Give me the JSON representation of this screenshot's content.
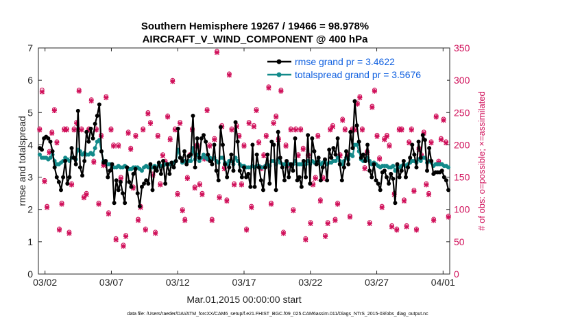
{
  "chart_data": {
    "type": "line",
    "title_line1": "Southern Hemisphere 19267 / 19466 = 98.978%",
    "title_line2": "AIRCRAFT_V_WIND_COMPONENT @ 400 hPa",
    "ylabel": "rmse and totalspread",
    "ylabel_right": "# of obs: o=possible; ×=assimilated",
    "xlabel": "Mar.01,2015 00:00:00 start",
    "footnote": "data file: /Users/raeder/DAI/ATM_forcXX/CAM6_setup/f.e21.FHIST_BGC.f09_025.CAM6assim.011/Diags_NTrS_2015-03/obs_diag_output.nc",
    "x_range_days": [
      0.5,
      31.5
    ],
    "ylim": [
      0,
      7
    ],
    "ylim_right": [
      0,
      350
    ],
    "xticks": [
      {
        "label": "03/02",
        "day": 1
      },
      {
        "label": "03/07",
        "day": 6
      },
      {
        "label": "03/12",
        "day": 11
      },
      {
        "label": "03/17",
        "day": 16
      },
      {
        "label": "03/22",
        "day": 21
      },
      {
        "label": "03/27",
        "day": 26
      },
      {
        "label": "04/01",
        "day": 31
      }
    ],
    "yticks": [
      "0",
      "1",
      "2",
      "3",
      "4",
      "5",
      "6",
      "7"
    ],
    "yticks_right": [
      "0",
      "50",
      "100",
      "150",
      "200",
      "250",
      "300",
      "350"
    ],
    "colors": {
      "rmse": "#000000",
      "spread": "#128a8a",
      "obs": "#d0105a",
      "legend_text": "#1060e0"
    },
    "legend": [
      {
        "name": "rmse grand pr = 3.4622",
        "series": "rmse"
      },
      {
        "name": "totalspread grand pr = 3.5676",
        "series": "spread"
      }
    ],
    "series": [
      {
        "name": "rmse",
        "values": [
          3.9,
          3.85,
          4.2,
          4.25,
          4.2,
          4.1,
          3.8,
          3.3,
          3.0,
          2.85,
          2.6,
          3.0,
          3.5,
          2.8,
          3.0,
          3.9,
          3.6,
          3.4,
          5.05,
          3.3,
          3.05,
          3.5,
          4.4,
          4.1,
          4.5,
          4.2,
          4.65,
          4.9,
          5.25,
          3.8,
          3.45,
          3.5,
          3.0,
          3.2,
          3.4,
          2.2,
          2.9,
          2.6,
          2.85,
          2.5,
          2.2,
          3.3,
          2.85,
          2.7,
          3.1,
          3.25,
          2.5,
          2.1,
          2.7,
          2.8,
          2.9,
          2.8,
          3.4,
          2.6,
          3.3,
          3.2,
          3.45,
          3.1,
          3.5,
          2.8,
          3.4,
          3.1,
          3.45,
          3.3,
          3.5,
          4.5,
          3.6,
          3.5,
          3.8,
          3.4,
          3.65,
          3.7,
          4.9,
          3.3,
          4.2,
          3.6,
          4.2,
          4.3,
          4.1,
          3.7,
          3.5,
          3.4,
          4.0,
          3.2,
          2.9,
          4.55,
          4.0,
          3.4,
          3.0,
          3.3,
          3.7,
          3.2,
          4.7,
          4.1,
          3.2,
          3.0,
          3.3,
          3.0,
          3.1,
          2.7,
          4.0,
          2.7,
          3.7,
          3.3,
          2.9,
          2.6,
          3.3,
          3.7,
          2.8,
          4.1,
          4.0,
          2.6,
          4.4,
          3.6,
          3.3,
          2.9,
          3.5,
          3.0,
          3.4,
          3.2,
          4.2,
          2.9,
          3.0,
          2.7,
          3.5,
          3.0,
          4.3,
          2.8,
          4.2,
          3.8,
          3.4,
          3.6,
          2.9,
          3.3,
          3.55,
          2.9,
          3.85,
          3.6,
          3.9,
          3.7,
          4.2,
          3.4,
          2.9,
          3.3,
          3.8,
          3.4,
          4.4,
          3.9,
          5.35,
          4.6,
          4.1,
          3.6,
          3.7,
          3.5,
          4.0,
          3.2,
          3.0,
          3.4,
          2.9,
          2.8,
          2.6,
          3.15,
          3.2,
          3.0,
          2.8,
          3.1,
          2.95,
          2.2,
          3.4,
          3.0,
          3.2,
          3.5,
          3.0,
          3.3,
          3.6,
          4.0,
          3.7,
          3.3,
          4.1,
          3.6,
          4.3,
          4.15,
          3.2,
          3.9,
          3.5,
          3.1,
          3.15,
          3.15,
          3.15,
          3.2,
          3.0,
          2.9,
          2.6
        ]
      },
      {
        "name": "totalspread",
        "values": [
          3.7,
          3.6,
          3.6,
          3.6,
          3.55,
          3.6,
          3.7,
          3.5,
          3.4,
          3.4,
          3.45,
          3.5,
          3.6,
          3.55,
          3.5,
          3.6,
          3.6,
          3.55,
          3.85,
          3.8,
          3.7,
          3.75,
          3.7,
          3.7,
          3.75,
          3.7,
          3.9,
          4.1,
          4.15,
          3.8,
          3.5,
          3.45,
          3.4,
          3.4,
          3.3,
          3.3,
          3.3,
          3.35,
          3.3,
          3.3,
          3.35,
          3.3,
          3.25,
          3.25,
          3.3,
          3.3,
          3.3,
          3.25,
          3.2,
          3.3,
          3.35,
          3.3,
          3.35,
          3.3,
          3.35,
          3.3,
          3.4,
          3.35,
          3.35,
          3.4,
          3.4,
          3.4,
          3.4,
          3.45,
          3.5,
          3.85,
          3.6,
          3.45,
          3.5,
          3.45,
          3.5,
          3.5,
          3.9,
          3.55,
          3.7,
          3.5,
          3.6,
          3.7,
          3.6,
          3.55,
          3.6,
          3.55,
          3.6,
          3.5,
          3.45,
          3.6,
          3.6,
          3.45,
          3.4,
          3.5,
          3.5,
          3.4,
          3.6,
          3.5,
          3.4,
          3.35,
          3.35,
          3.3,
          3.3,
          3.3,
          3.35,
          3.3,
          3.35,
          3.35,
          3.3,
          3.3,
          3.35,
          3.4,
          3.35,
          3.5,
          3.5,
          3.4,
          3.55,
          3.45,
          3.4,
          3.4,
          3.45,
          3.4,
          3.4,
          3.4,
          3.5,
          3.4,
          3.4,
          3.4,
          3.5,
          3.4,
          3.5,
          3.4,
          3.5,
          3.45,
          3.45,
          3.5,
          3.4,
          3.45,
          3.5,
          3.4,
          3.45,
          3.45,
          3.5,
          3.5,
          3.6,
          3.5,
          3.4,
          3.5,
          3.6,
          3.55,
          3.7,
          3.65,
          4.0,
          4.0,
          3.8,
          3.55,
          3.5,
          3.5,
          3.6,
          3.5,
          3.4,
          3.45,
          3.4,
          3.35,
          3.3,
          3.35,
          3.35,
          3.35,
          3.3,
          3.3,
          3.35,
          3.2,
          3.35,
          3.3,
          3.35,
          3.4,
          3.35,
          3.4,
          3.45,
          3.5,
          3.5,
          3.45,
          3.55,
          3.5,
          3.6,
          3.6,
          3.45,
          3.5,
          3.45,
          3.35,
          3.4,
          3.4,
          3.4,
          3.4,
          3.35,
          3.35,
          3.3
        ]
      },
      {
        "name": "obs_possible",
        "values": [
          225,
          285,
          145,
          105,
          190,
          220,
          255,
          205,
          70,
          110,
          225,
          225,
          65,
          140,
          225,
          235,
          285,
          225,
          120,
          125,
          225,
          270,
          175,
          225,
          110,
          215,
          170,
          275,
          95,
          225,
          200,
          55,
          200,
          150,
          45,
          60,
          220,
          195,
          135,
          215,
          85,
          105,
          225,
          70,
          250,
          235,
          155,
          65,
          215,
          140,
          185,
          175,
          245,
          210,
          300,
          225,
          125,
          235,
          100,
          85,
          150,
          185,
          225,
          135,
          200,
          140,
          125,
          180,
          255,
          200,
          85,
          210,
          345,
          120,
          230,
          165,
          115,
          310,
          225,
          140,
          230,
          215,
          140,
          200,
          70,
          235,
          105,
          230,
          255,
          205,
          165,
          185,
          215,
          290,
          110,
          235,
          245,
          210,
          285,
          65,
          200,
          170,
          225,
          100,
          225,
          185,
          225,
          195,
          55,
          185,
          80,
          140,
          150,
          215,
          115,
          150,
          60,
          80,
          225,
          230,
          85,
          110,
          185,
          240,
          225,
          185,
          90,
          225,
          225,
          265,
          275,
          225,
          165,
          190,
          80,
          260,
          285,
          215,
          180,
          105,
          210,
          215,
          200,
          75,
          125,
          70,
          225,
          225,
          115,
          75,
          205,
          225,
          130,
          70,
          195,
          185,
          220,
          140,
          125,
          205,
          85,
          245,
          175,
          210,
          240,
          205,
          90
        ]
      },
      {
        "name": "obs_assimilated",
        "values": [
          223,
          282,
          143,
          103,
          188,
          218,
          253,
          203,
          68,
          108,
          223,
          223,
          63,
          138,
          223,
          233,
          283,
          223,
          118,
          123,
          223,
          268,
          173,
          223,
          108,
          213,
          168,
          273,
          93,
          223,
          198,
          53,
          198,
          148,
          43,
          58,
          218,
          193,
          133,
          213,
          83,
          103,
          223,
          68,
          248,
          233,
          153,
          63,
          213,
          138,
          183,
          173,
          243,
          208,
          298,
          223,
          123,
          233,
          98,
          83,
          148,
          183,
          223,
          133,
          198,
          138,
          123,
          178,
          253,
          198,
          83,
          208,
          343,
          118,
          228,
          163,
          113,
          308,
          223,
          138,
          228,
          213,
          138,
          198,
          68,
          233,
          103,
          228,
          253,
          203,
          163,
          183,
          213,
          288,
          108,
          233,
          243,
          208,
          283,
          63,
          198,
          168,
          223,
          98,
          223,
          183,
          223,
          193,
          53,
          183,
          78,
          138,
          148,
          213,
          113,
          148,
          58,
          78,
          223,
          228,
          83,
          108,
          183,
          238,
          223,
          183,
          88,
          223,
          223,
          263,
          273,
          223,
          163,
          188,
          78,
          258,
          283,
          213,
          178,
          103,
          208,
          213,
          198,
          73,
          123,
          68,
          223,
          223,
          113,
          73,
          203,
          223,
          128,
          68,
          193,
          183,
          218,
          138,
          123,
          203,
          83,
          243,
          173,
          208,
          238,
          203,
          88
        ]
      }
    ]
  }
}
